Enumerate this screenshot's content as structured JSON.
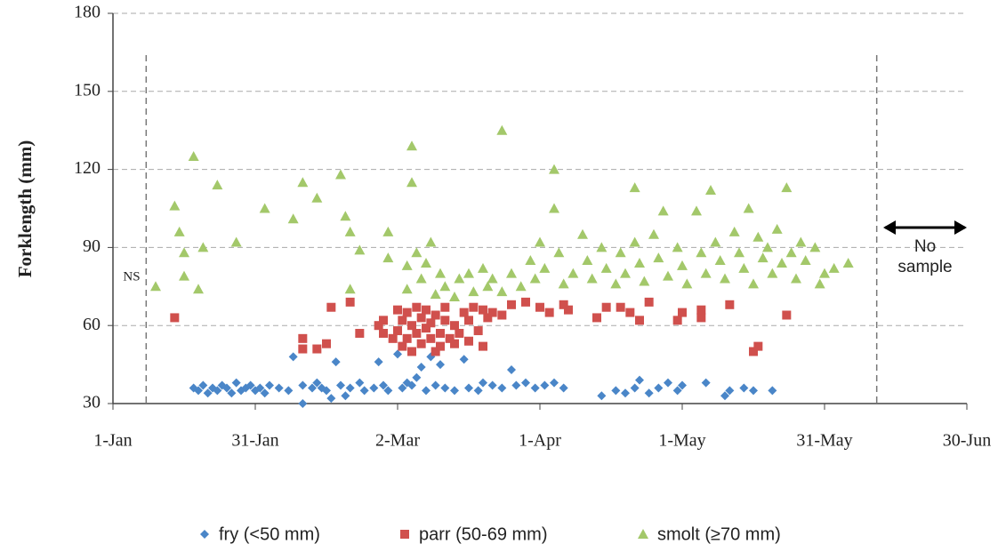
{
  "chart_data": {
    "type": "scatter",
    "ylabel": "Forklength (mm)",
    "xlim": [
      0,
      180
    ],
    "xticks": [
      {
        "value": 0,
        "label": "1-Jan"
      },
      {
        "value": 30,
        "label": "31-Jan"
      },
      {
        "value": 60,
        "label": "2-Mar"
      },
      {
        "value": 90,
        "label": "1-Apr"
      },
      {
        "value": 120,
        "label": "1-May"
      },
      {
        "value": 150,
        "label": "31-May"
      },
      {
        "value": 180,
        "label": "30-Jun"
      }
    ],
    "ylim": [
      30,
      180
    ],
    "yticks": [
      30,
      60,
      90,
      120,
      150,
      180
    ],
    "grid": true,
    "legend": "bottom",
    "reference_lines": [
      7,
      161
    ],
    "annotations": [
      "NS",
      "No sample"
    ],
    "series": [
      {
        "name": "fry (<50 mm)",
        "color": "#4a86c8",
        "marker": "diamond",
        "x": [
          17,
          18,
          19,
          20,
          21,
          22,
          23,
          24,
          25,
          26,
          27,
          28,
          29,
          30,
          31,
          32,
          33,
          35,
          37,
          38,
          40,
          40,
          42,
          43,
          44,
          45,
          46,
          47,
          48,
          49,
          50,
          52,
          53,
          55,
          56,
          57,
          58,
          60,
          61,
          62,
          63,
          64,
          65,
          66,
          67,
          68,
          69,
          70,
          72,
          74,
          75,
          77,
          78,
          80,
          82,
          84,
          85,
          87,
          89,
          91,
          93,
          95,
          103,
          106,
          108,
          110,
          111,
          113,
          115,
          117,
          119,
          120,
          125,
          129,
          130,
          133,
          135,
          139
        ],
        "y": [
          36,
          35,
          37,
          34,
          36,
          35,
          37,
          36,
          34,
          38,
          35,
          36,
          37,
          35,
          36,
          34,
          37,
          36,
          35,
          48,
          30,
          37,
          36,
          38,
          36,
          35,
          32,
          46,
          37,
          33,
          36,
          38,
          35,
          36,
          46,
          37,
          35,
          49,
          36,
          38,
          37,
          40,
          44,
          35,
          48,
          37,
          45,
          36,
          35,
          47,
          36,
          35,
          38,
          37,
          36,
          43,
          37,
          38,
          36,
          37,
          38,
          36,
          33,
          35,
          34,
          36,
          39,
          34,
          36,
          38,
          35,
          37,
          38,
          33,
          35,
          36,
          35,
          35
        ]
      },
      {
        "name": "parr (50-69 mm)",
        "color": "#d0504d",
        "marker": "square",
        "x": [
          13,
          40,
          40,
          43,
          45,
          46,
          50,
          52,
          56,
          57,
          57,
          59,
          60,
          60,
          61,
          61,
          62,
          62,
          63,
          63,
          64,
          64,
          65,
          65,
          66,
          66,
          67,
          67,
          68,
          68,
          69,
          69,
          70,
          70,
          71,
          72,
          72,
          73,
          74,
          75,
          75,
          76,
          77,
          78,
          78,
          79,
          80,
          82,
          84,
          87,
          90,
          92,
          95,
          96,
          102,
          104,
          107,
          109,
          111,
          113,
          119,
          120,
          124,
          124,
          130,
          135,
          136,
          142
        ],
        "y": [
          63,
          55,
          51,
          51,
          53,
          67,
          69,
          57,
          60,
          62,
          57,
          55,
          66,
          58,
          52,
          62,
          65,
          55,
          60,
          50,
          67,
          57,
          63,
          53,
          59,
          66,
          55,
          61,
          50,
          64,
          57,
          52,
          62,
          67,
          55,
          60,
          53,
          57,
          65,
          54,
          62,
          67,
          58,
          66,
          52,
          63,
          65,
          64,
          68,
          69,
          67,
          65,
          68,
          66,
          63,
          67,
          67,
          65,
          62,
          69,
          62,
          65,
          63,
          66,
          68,
          50,
          52,
          64
        ]
      },
      {
        "name": "smolt (≥70 mm)",
        "color": "#a3c86a",
        "marker": "triangle",
        "x": [
          9,
          13,
          14,
          15,
          15,
          17,
          19,
          18,
          22,
          26,
          32,
          38,
          40,
          43,
          48,
          49,
          50,
          50,
          52,
          58,
          58,
          63,
          63,
          62,
          62,
          64,
          65,
          66,
          67,
          68,
          69,
          70,
          72,
          73,
          75,
          76,
          78,
          79,
          80,
          82,
          82,
          84,
          86,
          88,
          89,
          90,
          91,
          93,
          93,
          94,
          95,
          97,
          99,
          100,
          101,
          103,
          104,
          106,
          107,
          108,
          110,
          110,
          111,
          112,
          114,
          115,
          116,
          117,
          119,
          120,
          121,
          123,
          124,
          125,
          126,
          127,
          128,
          129,
          131,
          132,
          133,
          134,
          135,
          136,
          137,
          138,
          139,
          140,
          141,
          142,
          143,
          144,
          145,
          146,
          148,
          149,
          150,
          152,
          155
        ],
        "y": [
          75,
          106,
          96,
          88,
          79,
          125,
          90,
          74,
          114,
          92,
          105,
          101,
          115,
          109,
          118,
          102,
          96,
          74,
          89,
          96,
          86,
          129,
          115,
          83,
          74,
          88,
          78,
          84,
          92,
          72,
          80,
          75,
          71,
          78,
          80,
          73,
          82,
          75,
          78,
          135,
          73,
          80,
          75,
          85,
          78,
          92,
          82,
          120,
          105,
          88,
          76,
          80,
          95,
          85,
          78,
          90,
          82,
          76,
          88,
          80,
          113,
          92,
          84,
          77,
          95,
          86,
          104,
          79,
          90,
          83,
          76,
          104,
          88,
          80,
          112,
          92,
          85,
          78,
          96,
          88,
          82,
          105,
          76,
          94,
          86,
          90,
          80,
          97,
          84,
          113,
          88,
          78,
          92,
          85,
          90,
          76,
          80,
          82,
          84
        ]
      }
    ]
  }
}
